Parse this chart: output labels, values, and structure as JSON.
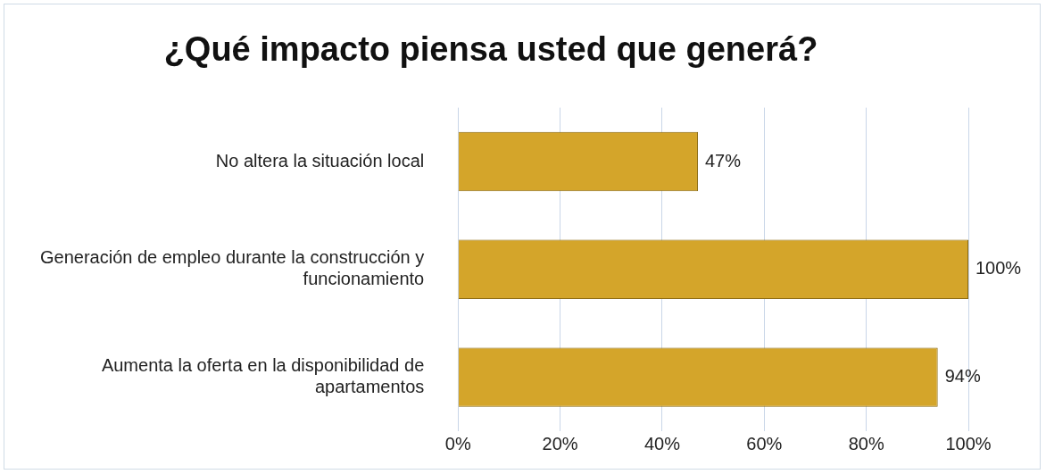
{
  "chart_data": {
    "type": "bar",
    "orientation": "horizontal",
    "title": "¿Qué impacto piensa usted que generá?",
    "categories": [
      "No altera la situación local",
      "Generación de empleo durante la construcción y funcionamiento",
      "Aumenta la oferta en la disponibilidad de apartamentos"
    ],
    "values": [
      47,
      100,
      94
    ],
    "color": "#d4a52a",
    "value_labels": [
      "47%",
      "100%",
      "94%"
    ],
    "xlim": [
      0,
      100
    ],
    "xticks": [
      {
        "value": 0,
        "label": "0%"
      },
      {
        "value": 20,
        "label": "20%"
      },
      {
        "value": 40,
        "label": "40%"
      },
      {
        "value": 60,
        "label": "60%"
      },
      {
        "value": 80,
        "label": "80%"
      },
      {
        "value": 100,
        "label": "100%"
      }
    ],
    "grid": "x",
    "legend": false
  }
}
